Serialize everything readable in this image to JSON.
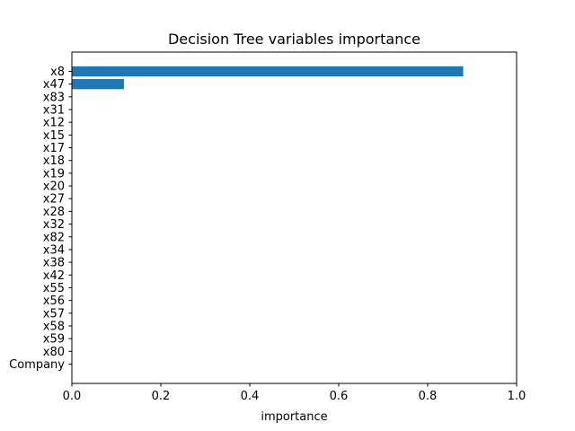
{
  "chart_data": {
    "type": "bar",
    "orientation": "horizontal",
    "title": "Decision Tree variables importance",
    "xlabel": "importance",
    "ylabel": "",
    "xlim": [
      0,
      1
    ],
    "xticks": [
      0.0,
      0.2,
      0.4,
      0.6,
      0.8,
      1.0
    ],
    "xtick_labels": [
      "0.0",
      "0.2",
      "0.4",
      "0.6",
      "0.8",
      "1.0"
    ],
    "grid": false,
    "legend": "none",
    "bar_color": "#1f77b4",
    "categories": [
      "x8",
      "x47",
      "x83",
      "x31",
      "x12",
      "x15",
      "x17",
      "x18",
      "x19",
      "x20",
      "x27",
      "x28",
      "x32",
      "x82",
      "x34",
      "x38",
      "x42",
      "x55",
      "x56",
      "x57",
      "x58",
      "x59",
      "x80",
      "Company"
    ],
    "values": [
      0.88,
      0.117,
      0,
      0,
      0,
      0,
      0,
      0,
      0,
      0,
      0,
      0,
      0,
      0,
      0,
      0,
      0,
      0,
      0,
      0,
      0,
      0,
      0,
      0
    ]
  }
}
